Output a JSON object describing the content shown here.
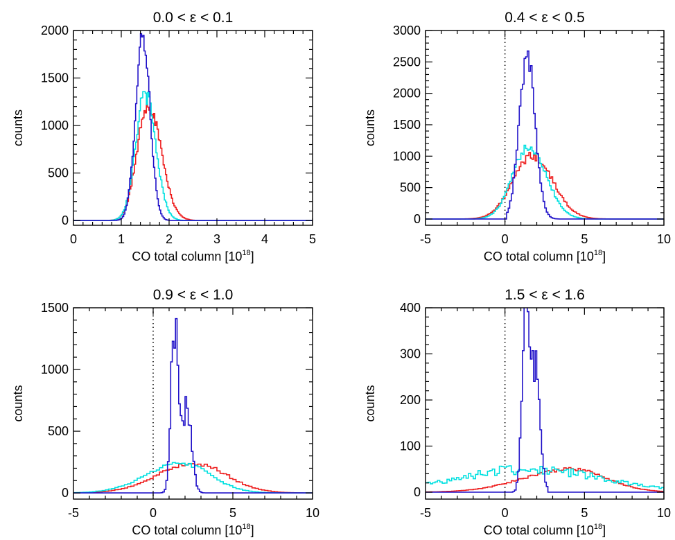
{
  "chart_data": [
    {
      "type": "line",
      "title": "0.0 < ε < 0.1",
      "xlabel": "CO total column [10",
      "xlabel_sup": "18",
      "xlabel_close": "]",
      "ylabel": "counts",
      "xlim": [
        0,
        5
      ],
      "ylim": [
        -50,
        2000
      ],
      "xticks": [
        0,
        1,
        2,
        3,
        4,
        5
      ],
      "xtick_labels": [
        "0",
        "1",
        "2",
        "3",
        "4",
        "5"
      ],
      "yticks": [
        0,
        500,
        1000,
        1500,
        2000
      ],
      "ytick_labels": [
        "0",
        "500",
        "1000",
        "1500",
        "2000"
      ],
      "zero_line": false,
      "series": [
        {
          "color": "#1f10c8",
          "shape": "dist",
          "center": 1.45,
          "peak": 1960,
          "sigma_left": 0.15,
          "sigma_right": 0.15,
          "xmin": 0.8,
          "xmax": 2.2,
          "bin_width": 0.025
        },
        {
          "color": "#00e0e0",
          "shape": "dist",
          "center": 1.5,
          "peak": 1330,
          "sigma_left": 0.2,
          "sigma_right": 0.22,
          "xmin": 0.6,
          "xmax": 2.8,
          "bin_width": 0.025
        },
        {
          "color": "#ee1c1c",
          "shape": "dist",
          "center": 1.55,
          "peak": 1230,
          "sigma_left": 0.22,
          "sigma_right": 0.28,
          "xmin": 0.5,
          "xmax": 3.0,
          "bin_width": 0.025
        }
      ]
    },
    {
      "type": "line",
      "title": "0.4 < ε < 0.5",
      "xlabel": "CO total column [10",
      "xlabel_sup": "18",
      "xlabel_close": "]",
      "ylabel": "counts",
      "xlim": [
        -5,
        10
      ],
      "ylim": [
        -100,
        3000
      ],
      "xticks": [
        -5,
        0,
        5,
        10
      ],
      "xtick_labels": [
        "-5",
        "0",
        "5",
        "10"
      ],
      "yticks": [
        0,
        500,
        1000,
        1500,
        2000,
        2500,
        3000
      ],
      "ytick_labels": [
        "0",
        "500",
        "1000",
        "1500",
        "2000",
        "2500",
        "3000"
      ],
      "zero_line": true,
      "series": [
        {
          "color": "#1f10c8",
          "shape": "dist",
          "center": 1.4,
          "peak": 2600,
          "sigma_left": 0.5,
          "sigma_right": 0.5,
          "xmin": 0.0,
          "xmax": 3.5,
          "bin_width": 0.1
        },
        {
          "color": "#00e0e0",
          "shape": "dist",
          "center": 1.5,
          "peak": 1170,
          "sigma_left": 1.0,
          "sigma_right": 1.1,
          "xmin": -2.0,
          "xmax": 6.0,
          "bin_width": 0.1
        },
        {
          "color": "#ee1c1c",
          "shape": "dist",
          "center": 1.7,
          "peak": 1000,
          "sigma_left": 1.2,
          "sigma_right": 1.3,
          "xmin": -3.0,
          "xmax": 7.0,
          "bin_width": 0.1
        }
      ]
    },
    {
      "type": "line",
      "title": "0.9 < ε < 1.0",
      "xlabel": "CO total column [10",
      "xlabel_sup": "18",
      "xlabel_close": "]",
      "ylabel": "counts",
      "xlim": [
        -5,
        10
      ],
      "ylim": [
        -50,
        1500
      ],
      "xticks": [
        -5,
        0,
        5,
        10
      ],
      "xtick_labels": [
        "-5",
        "0",
        "5",
        "10"
      ],
      "yticks": [
        0,
        500,
        1000,
        1500
      ],
      "ytick_labels": [
        "0",
        "500",
        "1000",
        "1500"
      ],
      "zero_line": true,
      "series": [
        {
          "color": "#1f10c8",
          "shape": "blue_multi",
          "peaks": [
            {
              "x": 1.35,
              "y": 1360
            },
            {
              "x": 2.1,
              "y": 700
            }
          ],
          "xmin": 0.3,
          "xmax": 3.5,
          "bin_width": 0.1
        },
        {
          "color": "#00e0e0",
          "shape": "dist",
          "center": 1.8,
          "peak": 240,
          "sigma_left": 2.2,
          "sigma_right": 1.8,
          "xmin": -5.0,
          "xmax": 9.0,
          "bin_width": 0.2
        },
        {
          "color": "#ee1c1c",
          "shape": "dist",
          "center": 2.6,
          "peak": 240,
          "sigma_left": 2.3,
          "sigma_right": 2.0,
          "xmin": -5.0,
          "xmax": 9.5,
          "bin_width": 0.2
        }
      ]
    },
    {
      "type": "line",
      "title": "1.5 < ε < 1.6",
      "xlabel": "CO total column [10",
      "xlabel_sup": "18",
      "xlabel_close": "]",
      "ylabel": "counts",
      "xlim": [
        -5,
        10
      ],
      "ylim": [
        -15,
        400
      ],
      "xticks": [
        -5,
        0,
        5,
        10
      ],
      "xtick_labels": [
        "-5",
        "0",
        "5",
        "10"
      ],
      "yticks": [
        0,
        100,
        200,
        300,
        400
      ],
      "ytick_labels": [
        "0",
        "100",
        "200",
        "300",
        "400"
      ],
      "zero_line": true,
      "series": [
        {
          "color": "#1f10c8",
          "shape": "blue_multi",
          "peaks": [
            {
              "x": 1.3,
              "y": 420
            },
            {
              "x": 1.9,
              "y": 260
            }
          ],
          "xmin": 0.2,
          "xmax": 2.6,
          "bin_width": 0.1
        },
        {
          "color": "#00e0e0",
          "shape": "flat",
          "center": 1.5,
          "peak": 50,
          "sigma": 4.5,
          "xmin": -5.0,
          "xmax": 10.0,
          "bin_width": 0.15
        },
        {
          "color": "#ee1c1c",
          "shape": "dist",
          "center": 4.2,
          "peak": 50,
          "sigma_left": 3.0,
          "sigma_right": 2.2,
          "xmin": -5.0,
          "xmax": 10.0,
          "bin_width": 0.15
        }
      ]
    }
  ]
}
